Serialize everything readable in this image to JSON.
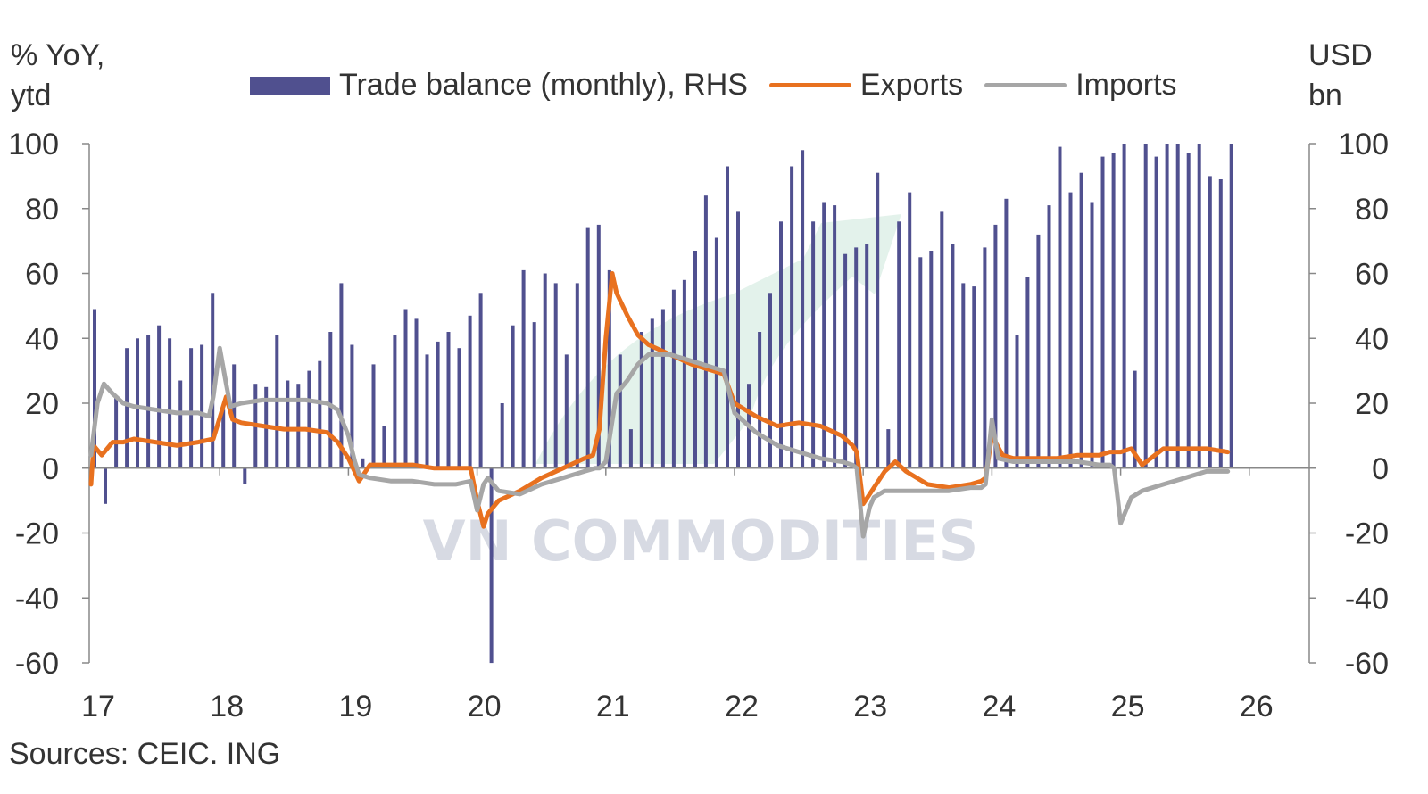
{
  "colors": {
    "bar": "#50508f",
    "exports": "#e8711f",
    "imports": "#a6a6a6",
    "axis": "#888888",
    "text": "#333333"
  },
  "watermark": "VN COMMODITIES",
  "left_axis_title": [
    "% YoY,",
    "ytd"
  ],
  "right_axis_title": [
    "USD",
    "bn"
  ],
  "source": "Sources: CEIC. ING",
  "chart_data": {
    "type": "bar+line",
    "legend": [
      {
        "label": "Trade balance (monthly), RHS",
        "kind": "bar"
      },
      {
        "label": "Exports",
        "kind": "line"
      },
      {
        "label": "Imports",
        "kind": "line"
      }
    ],
    "ylim": [
      -60,
      100
    ],
    "y_ticks": [
      100,
      80,
      60,
      40,
      20,
      0,
      -20,
      -40,
      -60
    ],
    "x_ticks": [
      "17",
      "18",
      "19",
      "20",
      "21",
      "22",
      "23",
      "24",
      "25",
      "26"
    ],
    "x_start": 17,
    "series": [
      {
        "name": "Trade balance (monthly), RHS",
        "type": "bar",
        "axis": "right",
        "x": [
          17.0,
          17.083,
          17.167,
          17.25,
          17.333,
          17.417,
          17.5,
          17.583,
          17.667,
          17.75,
          17.833,
          17.917,
          18.0,
          18.083,
          18.167,
          18.25,
          18.333,
          18.417,
          18.5,
          18.583,
          18.667,
          18.75,
          18.833,
          18.917,
          19.0,
          19.083,
          19.167,
          19.25,
          19.333,
          19.417,
          19.5,
          19.583,
          19.667,
          19.75,
          19.833,
          19.917,
          20.0,
          20.083,
          20.167,
          20.25,
          20.333,
          20.417,
          20.5,
          20.583,
          20.667,
          20.75,
          20.833,
          20.917,
          21.0,
          21.083,
          21.167,
          21.25,
          21.333,
          21.417,
          21.5,
          21.583,
          21.667,
          21.75,
          21.833,
          21.917,
          22.0,
          22.083,
          22.167,
          22.25,
          22.333,
          22.417,
          22.5,
          22.583,
          22.667,
          22.75,
          22.833,
          22.917,
          23.0,
          23.083,
          23.167,
          23.25,
          23.333,
          23.417,
          23.5,
          23.583,
          23.667,
          23.75,
          23.833,
          23.917,
          24.0,
          24.083,
          24.167,
          24.25,
          24.333,
          24.417,
          24.5,
          24.583,
          24.667,
          24.75,
          24.833,
          24.917,
          25.0,
          25.083,
          25.167,
          25.25,
          25.333,
          25.417,
          25.5,
          25.583,
          25.667,
          25.75,
          25.833
        ],
        "values": [
          49,
          -11,
          22,
          37,
          40,
          41,
          44,
          40,
          27,
          37,
          38,
          54,
          18,
          32,
          -5,
          26,
          25,
          41,
          27,
          26,
          30,
          33,
          42,
          57,
          38,
          3,
          32,
          13,
          41,
          49,
          46,
          35,
          39,
          42,
          37,
          47,
          54,
          -60,
          20,
          44,
          61,
          45,
          60,
          57,
          35,
          57,
          74,
          75,
          61,
          35,
          12,
          42,
          46,
          49,
          55,
          58,
          67,
          84,
          71,
          93,
          79,
          26,
          42,
          54,
          76,
          93,
          98,
          76,
          82,
          81,
          66,
          68,
          69,
          91,
          12,
          76,
          85,
          65,
          67,
          79,
          69,
          57,
          56,
          68,
          75,
          83,
          41,
          59,
          72,
          81,
          99,
          85,
          91,
          82,
          96,
          97,
          100,
          30,
          100,
          96,
          100,
          100,
          97,
          100,
          90,
          89,
          100
        ]
      },
      {
        "name": "Exports",
        "type": "line",
        "axis": "left",
        "x": [
          17.0,
          17.02,
          17.083,
          17.167,
          17.25,
          17.333,
          17.5,
          17.667,
          17.833,
          17.95,
          18.05,
          18.1,
          18.167,
          18.333,
          18.5,
          18.667,
          18.833,
          18.917,
          19.0,
          19.083,
          19.167,
          19.333,
          19.5,
          19.667,
          19.833,
          19.95,
          20.0,
          20.05,
          20.083,
          20.167,
          20.333,
          20.5,
          20.667,
          20.833,
          20.9,
          20.95,
          21.0,
          21.05,
          21.083,
          21.167,
          21.25,
          21.333,
          21.5,
          21.667,
          21.833,
          21.917,
          22.0,
          22.167,
          22.333,
          22.5,
          22.667,
          22.833,
          22.917,
          22.95,
          23.0,
          23.083,
          23.167,
          23.25,
          23.333,
          23.5,
          23.667,
          23.833,
          23.917,
          23.95,
          24.0,
          24.083,
          24.167,
          24.333,
          24.5,
          24.667,
          24.833,
          24.917,
          25.0,
          25.083,
          25.167,
          25.333,
          25.5,
          25.667,
          25.833
        ],
        "values": [
          -5,
          7,
          4,
          8,
          8,
          9,
          8,
          7,
          8,
          9,
          22,
          15,
          14,
          13,
          12,
          12,
          11,
          8,
          3,
          -4,
          1,
          1,
          1,
          0,
          0,
          0,
          -10,
          -18,
          -14,
          -10,
          -7,
          -3,
          0,
          3,
          4,
          12,
          40,
          60,
          54,
          47,
          41,
          38,
          35,
          32,
          30,
          29,
          20,
          16,
          13,
          14,
          13,
          10,
          7,
          5,
          -11,
          -6,
          -1,
          2,
          -1,
          -5,
          -6,
          -5,
          -4,
          -3,
          10,
          4,
          3,
          3,
          3,
          4,
          4,
          5,
          5,
          6,
          1,
          6,
          6,
          6,
          5
        ]
      },
      {
        "name": "Imports",
        "type": "line",
        "axis": "left",
        "x": [
          17.0,
          17.05,
          17.1,
          17.167,
          17.25,
          17.333,
          17.5,
          17.667,
          17.833,
          17.917,
          17.95,
          18.0,
          18.05,
          18.083,
          18.167,
          18.333,
          18.5,
          18.667,
          18.833,
          18.917,
          19.0,
          19.05,
          19.083,
          19.167,
          19.333,
          19.5,
          19.667,
          19.833,
          19.95,
          20.0,
          20.05,
          20.083,
          20.167,
          20.333,
          20.5,
          20.667,
          20.833,
          20.917,
          20.95,
          21.0,
          21.083,
          21.167,
          21.25,
          21.333,
          21.5,
          21.667,
          21.833,
          21.917,
          22.0,
          22.167,
          22.333,
          22.5,
          22.667,
          22.833,
          22.917,
          22.95,
          23.0,
          23.05,
          23.083,
          23.167,
          23.333,
          23.5,
          23.667,
          23.833,
          23.917,
          23.95,
          24.0,
          24.05,
          24.167,
          24.333,
          24.5,
          24.667,
          24.833,
          24.917,
          24.95,
          25.0,
          25.083,
          25.167,
          25.333,
          25.5,
          25.667,
          25.833
        ],
        "values": [
          4,
          20,
          26,
          23,
          20,
          19,
          18,
          17,
          17,
          16,
          22,
          37,
          26,
          19,
          20,
          21,
          21,
          21,
          20,
          18,
          10,
          2,
          -2,
          -3,
          -4,
          -4,
          -5,
          -5,
          -4,
          -13,
          -5,
          -3,
          -7,
          -8,
          -5,
          -3,
          -1,
          0,
          0,
          2,
          23,
          27,
          32,
          35,
          35,
          33,
          31,
          30,
          17,
          11,
          7,
          5,
          3,
          2,
          1,
          0,
          -21,
          -12,
          -9,
          -7,
          -7,
          -7,
          -7,
          -6,
          -6,
          -5,
          15,
          3,
          2,
          2,
          2,
          2,
          1,
          1,
          0,
          -17,
          -9,
          -7,
          -5,
          -3,
          -1,
          -1
        ]
      }
    ]
  }
}
